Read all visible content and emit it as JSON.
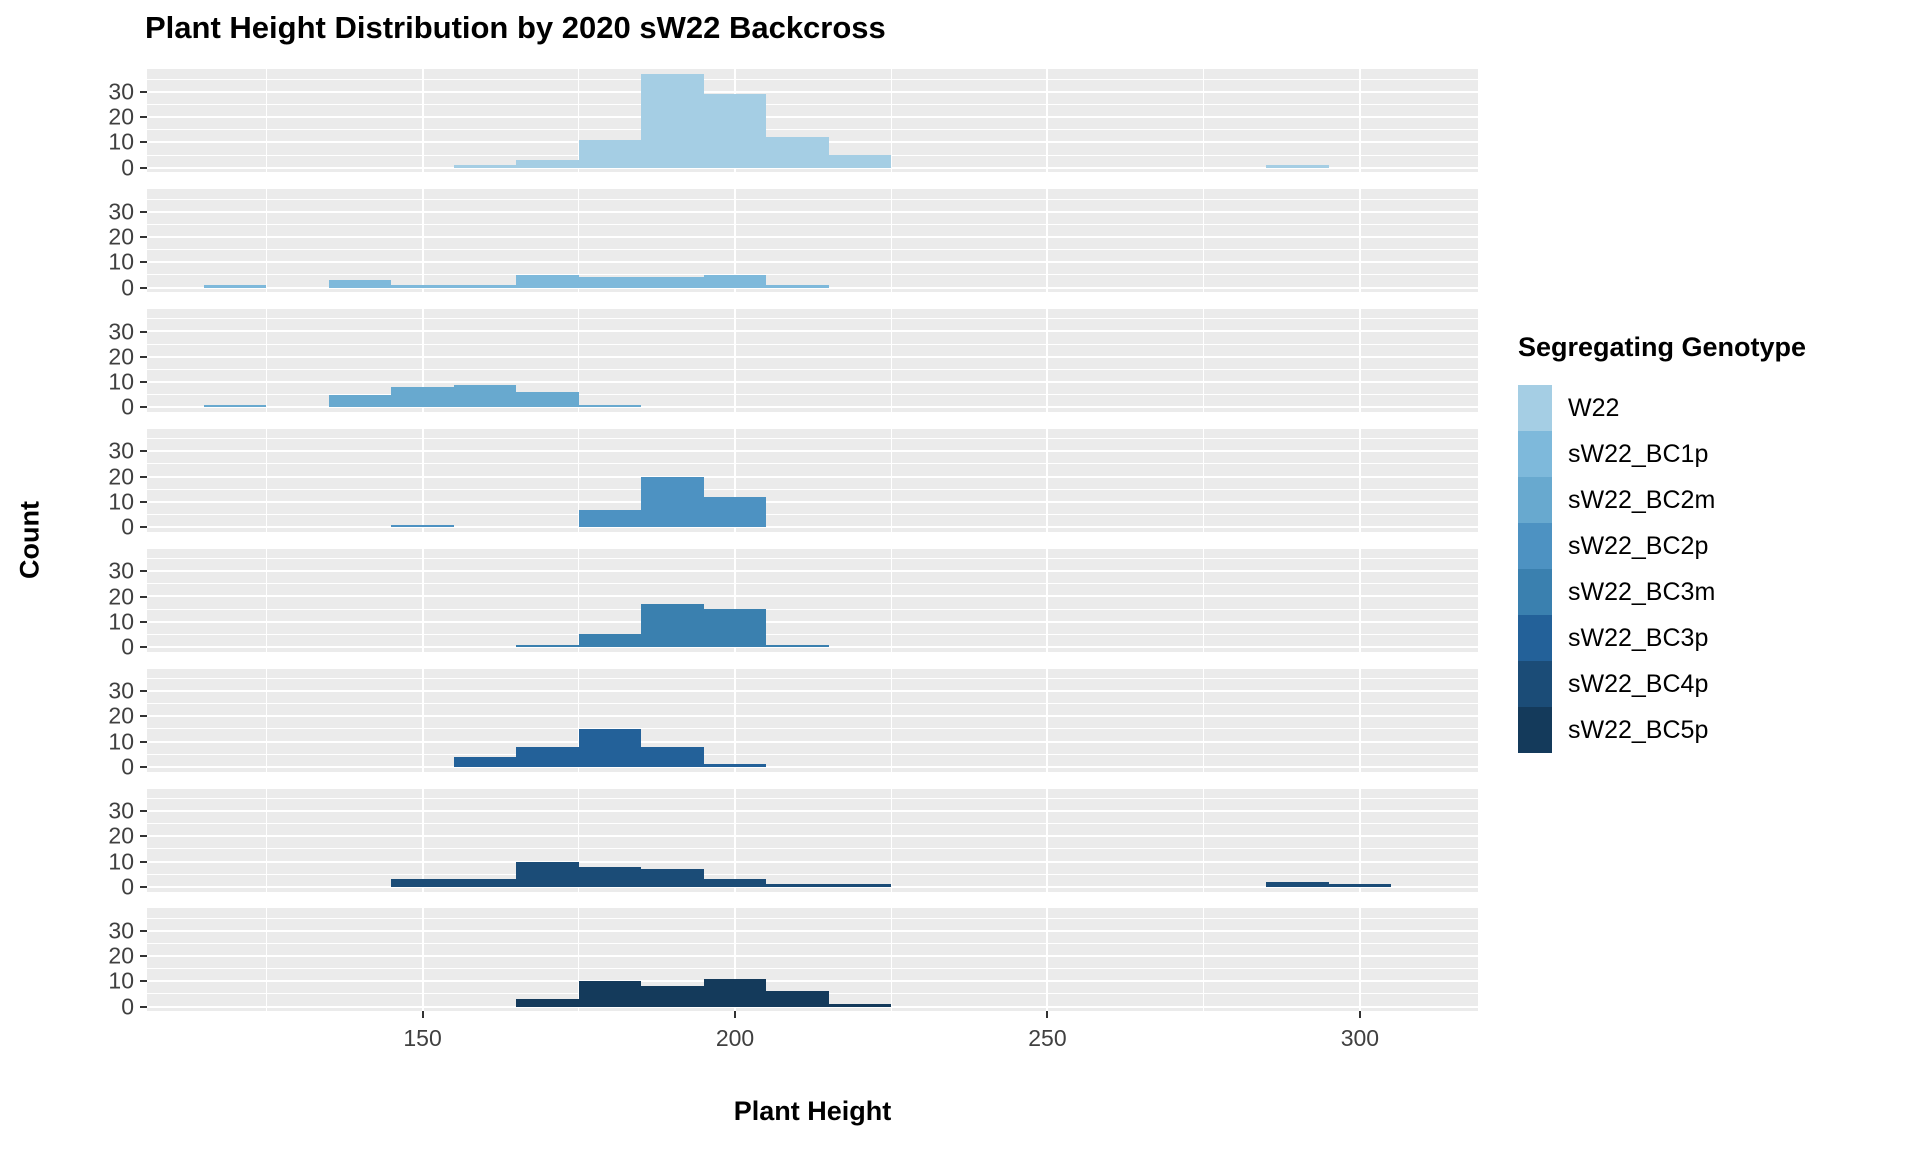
{
  "chart": {
    "title": "Plant Height Distribution by 2020 sW22 Backcross",
    "x_label": "Plant Height",
    "y_label": "Count",
    "chart_data": {
      "type": "histogram",
      "faceted": true,
      "facet_rows": 8,
      "bin_width": 10,
      "x_ticks": [
        150,
        200,
        250,
        300
      ],
      "x_minor_gridlines": [
        125,
        175,
        225,
        275
      ],
      "y_ticks": [
        0,
        10,
        20,
        30
      ],
      "y_minor_gridlines": [
        5,
        15,
        25,
        35
      ],
      "x_domain": [
        105.9,
        318.9
      ],
      "y_domain": [
        -1.85,
        38.85
      ],
      "panel_background": "#EBEBEB",
      "gridline_color": "#FFFFFF",
      "series": [
        {
          "name": "W22",
          "color": "#A5CEE4",
          "bins": [
            [
              155,
              1
            ],
            [
              165,
              3
            ],
            [
              175,
              11
            ],
            [
              185,
              37
            ],
            [
              195,
              29
            ],
            [
              205,
              12
            ],
            [
              215,
              5
            ],
            [
              285,
              1
            ]
          ]
        },
        {
          "name": "sW22_BC1p",
          "color": "#7EB9DB",
          "bins": [
            [
              115,
              1
            ],
            [
              135,
              3
            ],
            [
              145,
              1
            ],
            [
              155,
              1
            ],
            [
              165,
              5
            ],
            [
              175,
              4
            ],
            [
              185,
              4
            ],
            [
              195,
              5
            ],
            [
              205,
              1
            ]
          ]
        },
        {
          "name": "sW22_BC2m",
          "color": "#68A9CF",
          "bins": [
            [
              115,
              1
            ],
            [
              135,
              5
            ],
            [
              145,
              8
            ],
            [
              155,
              9
            ],
            [
              165,
              6
            ],
            [
              175,
              1
            ]
          ]
        },
        {
          "name": "sW22_BC2p",
          "color": "#4D92C2",
          "bins": [
            [
              145,
              1
            ],
            [
              175,
              7
            ],
            [
              185,
              20
            ],
            [
              195,
              12
            ]
          ]
        },
        {
          "name": "sW22_BC3m",
          "color": "#3A80AF",
          "bins": [
            [
              165,
              1
            ],
            [
              175,
              5
            ],
            [
              185,
              17
            ],
            [
              195,
              15
            ],
            [
              205,
              1
            ]
          ]
        },
        {
          "name": "sW22_BC3p",
          "color": "#236199",
          "bins": [
            [
              155,
              4
            ],
            [
              165,
              8
            ],
            [
              175,
              15
            ],
            [
              185,
              8
            ],
            [
              195,
              1
            ]
          ]
        },
        {
          "name": "sW22_BC4p",
          "color": "#1B4C77",
          "bins": [
            [
              145,
              3
            ],
            [
              155,
              3
            ],
            [
              165,
              10
            ],
            [
              175,
              8
            ],
            [
              185,
              7
            ],
            [
              195,
              3
            ],
            [
              205,
              1
            ],
            [
              215,
              1
            ],
            [
              285,
              2
            ],
            [
              295,
              1
            ]
          ]
        },
        {
          "name": "sW22_BC5p",
          "color": "#143A5B",
          "bins": [
            [
              165,
              3
            ],
            [
              175,
              10
            ],
            [
              185,
              8
            ],
            [
              195,
              11
            ],
            [
              205,
              6
            ],
            [
              215,
              1
            ]
          ]
        }
      ]
    }
  },
  "legend": {
    "title": "Segregating Genotype"
  }
}
